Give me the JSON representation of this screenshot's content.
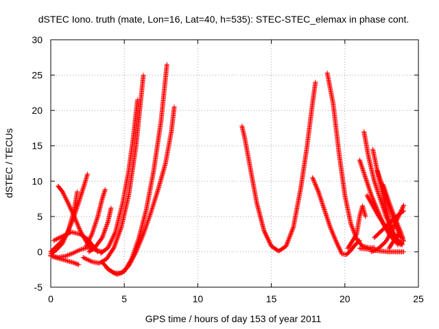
{
  "chart_data": {
    "type": "scatter",
    "title": "dSTEC Iono. truth (mate, Lon=16, Lat=40, h=535): STEC-STEC_elemax in phase cont.",
    "xlabel": "GPS time / hours of day 153 of year 2011",
    "ylabel": "dSTEC  / TECUs",
    "xlim": [
      0,
      25
    ],
    "ylim": [
      -5,
      30
    ],
    "x_ticks": [
      "0",
      "5",
      "10",
      "15",
      "20",
      "25"
    ],
    "y_ticks": [
      "-5",
      "0",
      "5",
      "10",
      "15",
      "20",
      "25",
      "30"
    ],
    "grid": "dotted",
    "marker": "+",
    "color": "#ff0000",
    "series": [
      {
        "x": [
          0.0,
          0.3,
          0.7,
          1.1,
          1.5,
          1.9,
          2.3,
          2.5
        ],
        "y": [
          0.0,
          0.6,
          1.4,
          2.6,
          4.5,
          7.0,
          9.6,
          11.0
        ]
      },
      {
        "x": [
          0.0,
          0.4,
          0.8,
          1.2,
          1.6,
          1.8
        ],
        "y": [
          -0.3,
          0.3,
          1.2,
          3.0,
          6.0,
          8.5
        ]
      },
      {
        "x": [
          0.5,
          0.8,
          1.2,
          1.6,
          2.0,
          2.4,
          2.7
        ],
        "y": [
          9.3,
          8.5,
          6.8,
          5.0,
          3.0,
          1.5,
          0.7
        ]
      },
      {
        "x": [
          0.0,
          0.5,
          1.0,
          1.5,
          1.9
        ],
        "y": [
          -0.6,
          -0.9,
          -1.2,
          -1.5,
          -1.8
        ]
      },
      {
        "x": [
          0.2,
          0.8,
          1.4,
          2.0,
          2.5,
          3.0,
          3.2
        ],
        "y": [
          1.6,
          2.2,
          2.8,
          2.5,
          1.8,
          0.5,
          0.0
        ]
      },
      {
        "x": [
          2.4,
          2.8,
          3.2,
          3.5,
          3.7
        ],
        "y": [
          0.8,
          2.5,
          5.0,
          7.5,
          8.8
        ]
      },
      {
        "x": [
          0.0,
          0.5,
          1.0,
          1.5,
          2.0,
          2.5,
          3.0,
          3.5
        ],
        "y": [
          -0.5,
          -0.8,
          -0.6,
          -0.2,
          0.3,
          0.6,
          0.3,
          0.0
        ]
      },
      {
        "x": [
          2.6,
          3.0,
          3.5,
          3.9,
          4.1
        ],
        "y": [
          0.0,
          0.6,
          2.0,
          4.3,
          6.2
        ]
      },
      {
        "x": [
          2.2,
          2.8,
          3.3,
          3.8,
          4.3,
          4.8,
          5.3,
          5.8,
          6.1,
          6.3
        ],
        "y": [
          -0.8,
          -1.4,
          -1.6,
          -1.0,
          0.6,
          3.5,
          8.0,
          15.0,
          21.0,
          25.0
        ]
      },
      {
        "x": [
          3.4,
          3.9,
          4.4,
          4.9,
          5.3,
          5.6,
          5.9
        ],
        "y": [
          -0.2,
          0.6,
          2.8,
          7.0,
          11.5,
          16.0,
          21.5
        ]
      },
      {
        "x": [
          3.5,
          4.0,
          4.5,
          5.0,
          5.5,
          6.0,
          6.5,
          7.0,
          7.5,
          7.9
        ],
        "y": [
          -1.5,
          -2.6,
          -3.2,
          -2.8,
          -1.0,
          2.0,
          6.0,
          11.5,
          18.5,
          26.5
        ]
      },
      {
        "x": [
          3.8,
          4.3,
          4.8,
          5.3,
          5.8,
          6.3,
          6.8,
          7.3,
          7.8,
          8.2,
          8.4
        ],
        "y": [
          -2.3,
          -3.0,
          -3.0,
          -2.0,
          0.0,
          2.5,
          5.5,
          8.8,
          12.5,
          17.0,
          20.5
        ]
      },
      {
        "x": [
          13.0,
          13.2,
          13.6,
          14.0,
          14.5,
          15.0,
          15.5,
          16.0,
          16.5,
          17.0,
          17.4,
          17.8,
          18.0
        ],
        "y": [
          17.8,
          16.0,
          11.5,
          7.0,
          3.0,
          0.8,
          0.1,
          0.8,
          3.5,
          9.0,
          14.5,
          21.0,
          24.0
        ]
      },
      {
        "x": [
          17.8,
          18.2,
          18.6,
          19.0,
          19.4,
          19.8,
          20.1,
          20.4,
          20.7,
          21.0
        ],
        "y": [
          10.5,
          8.5,
          6.0,
          3.5,
          1.5,
          -0.3,
          -0.4,
          0.2,
          1.0,
          1.6
        ]
      },
      {
        "x": [
          18.8,
          19.2,
          19.6,
          20.0,
          20.4,
          20.8,
          21.2,
          21.6,
          22.0
        ],
        "y": [
          25.3,
          21.0,
          14.0,
          8.0,
          4.0,
          1.8,
          0.8,
          0.6,
          0.6
        ]
      },
      {
        "x": [
          20.2,
          20.5,
          20.8,
          21.0,
          21.2,
          21.4
        ],
        "y": [
          0.5,
          1.5,
          2.5,
          5.0,
          6.5,
          5.0
        ]
      },
      {
        "x": [
          21.0,
          21.4,
          21.8,
          22.2,
          22.6,
          23.0,
          23.4,
          23.8
        ],
        "y": [
          13.0,
          10.5,
          8.0,
          6.0,
          4.0,
          2.5,
          1.5,
          1.0
        ]
      },
      {
        "x": [
          21.3,
          21.6,
          22.0,
          22.4,
          22.8,
          23.2,
          23.6,
          23.9
        ],
        "y": [
          17.0,
          13.5,
          10.0,
          7.5,
          5.0,
          3.0,
          1.6,
          1.0
        ]
      },
      {
        "x": [
          21.5,
          21.9,
          22.3,
          22.7,
          23.1,
          23.5,
          23.9
        ],
        "y": [
          8.0,
          6.5,
          5.0,
          3.8,
          2.8,
          1.8,
          1.2
        ]
      },
      {
        "x": [
          21.9,
          22.3,
          22.7,
          23.0,
          23.3,
          23.6
        ],
        "y": [
          14.5,
          10.5,
          7.0,
          4.5,
          2.5,
          1.0
        ]
      },
      {
        "x": [
          22.2,
          22.6,
          23.0,
          23.4,
          23.8
        ],
        "y": [
          11.5,
          9.0,
          6.5,
          4.0,
          2.0
        ]
      },
      {
        "x": [
          22.6,
          23.0,
          23.4,
          23.8,
          24.0
        ],
        "y": [
          9.5,
          7.0,
          4.8,
          2.8,
          1.5
        ]
      },
      {
        "x": [
          21.8,
          22.3,
          22.8,
          23.2,
          23.6,
          24.0
        ],
        "y": [
          0.0,
          0.5,
          1.5,
          3.0,
          4.8,
          6.6
        ]
      },
      {
        "x": [
          22.0,
          22.5,
          23.0,
          23.5,
          24.0
        ],
        "y": [
          2.0,
          3.0,
          4.0,
          5.0,
          5.8
        ]
      },
      {
        "x": [
          21.0,
          21.5,
          22.0,
          22.5,
          23.0,
          23.5,
          24.0
        ],
        "y": [
          0.5,
          0.4,
          0.2,
          0.1,
          0.0,
          0.0,
          0.0
        ]
      },
      {
        "x": [
          23.0,
          23.3,
          23.6,
          23.9
        ],
        "y": [
          0.5,
          1.5,
          2.5,
          2.0
        ]
      }
    ]
  }
}
